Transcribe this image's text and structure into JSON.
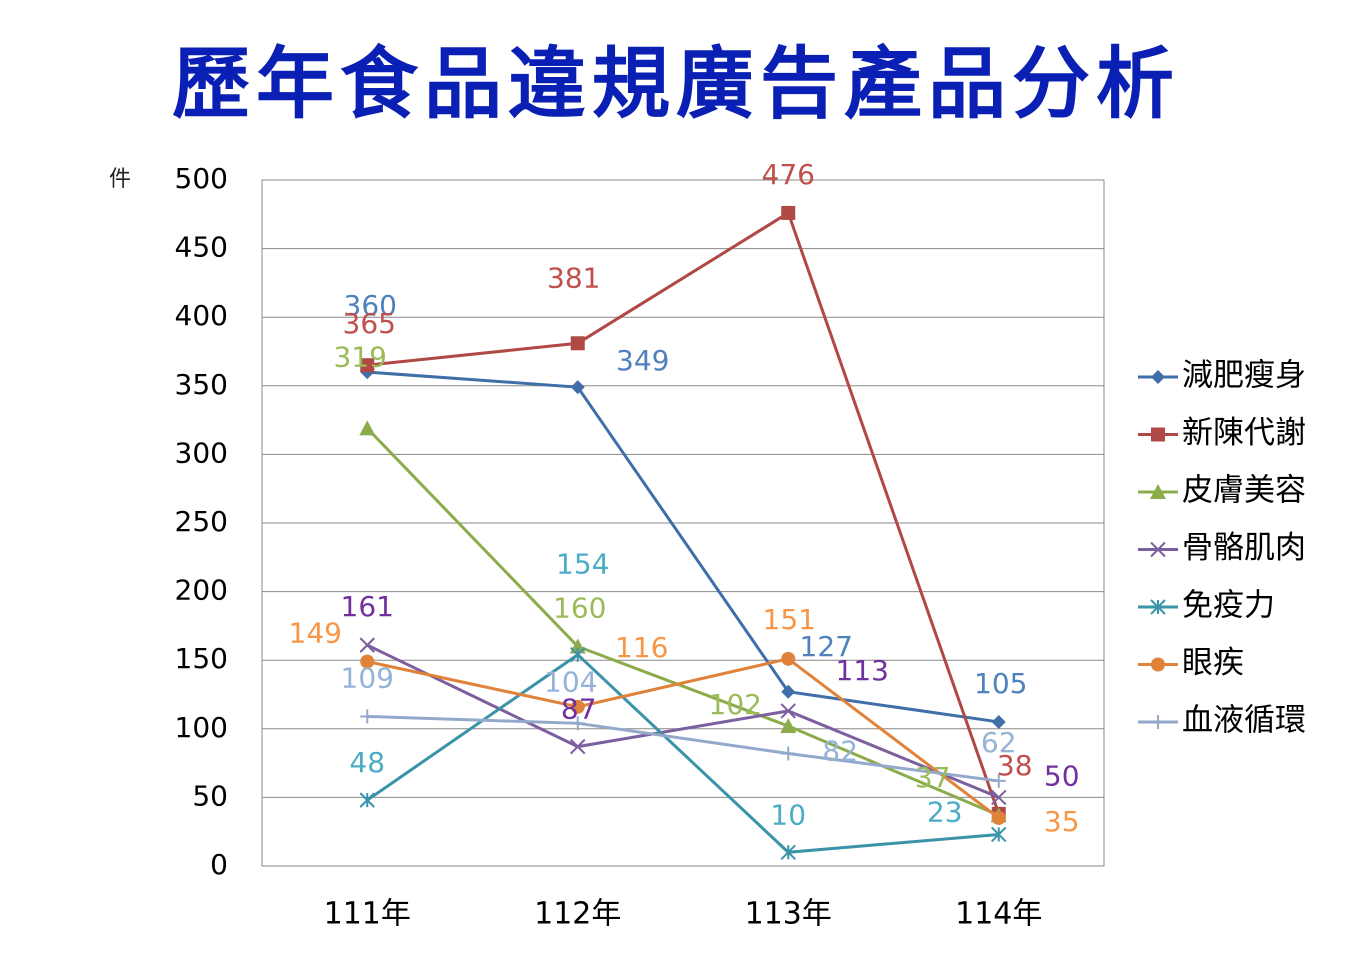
{
  "chart_data": {
    "type": "line",
    "title": "歷年食品違規廣告產品分析",
    "y_label": "件",
    "categories": [
      "111年",
      "112年",
      "113年",
      "114年"
    ],
    "series": [
      {
        "name": "減肥瘦身",
        "color": "#4F81BD",
        "line_color": "#3f6ea8",
        "marker": "diamond",
        "values": [
          360,
          349,
          127,
          105
        ]
      },
      {
        "name": "新陳代謝",
        "color": "#C0504D",
        "line_color": "#b04845",
        "marker": "square",
        "values": [
          365,
          381,
          476,
          38
        ]
      },
      {
        "name": "皮膚美容",
        "color": "#9BBB59",
        "line_color": "#8cac4c",
        "marker": "triangle",
        "values": [
          319,
          160,
          102,
          37
        ]
      },
      {
        "name": "骨骼肌肉",
        "color": "#7030A0",
        "line_color": "#7b5f9e",
        "marker": "x",
        "values": [
          161,
          87,
          113,
          50
        ]
      },
      {
        "name": "免疫力",
        "color": "#4BACC6",
        "line_color": "#3a93a8",
        "marker": "star",
        "values": [
          48,
          154,
          10,
          23
        ]
      },
      {
        "name": "眼疾",
        "color": "#F79646",
        "line_color": "#e0823a",
        "marker": "circle",
        "values": [
          149,
          116,
          151,
          35
        ]
      },
      {
        "name": "血液循環",
        "color": "#95B3D7",
        "line_color": "#92a9cc",
        "marker": "plus",
        "values": [
          109,
          104,
          82,
          62
        ]
      }
    ],
    "ylim": [
      0,
      500
    ],
    "yticks": [
      0,
      50,
      100,
      150,
      200,
      250,
      300,
      350,
      400,
      450,
      500
    ],
    "grid": true,
    "legend": "right",
    "title_color": "#0a1fb4"
  }
}
